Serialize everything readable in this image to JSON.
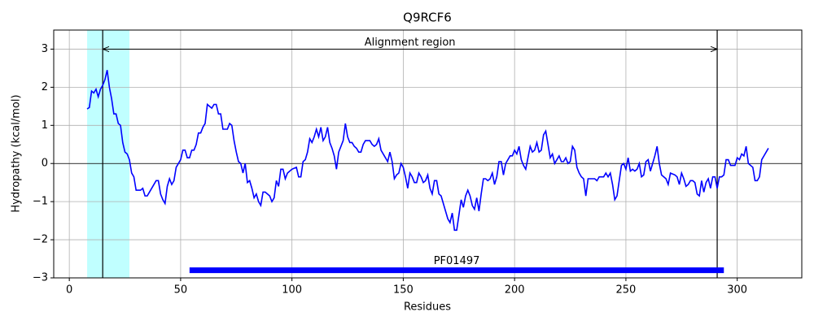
{
  "chart_data": {
    "type": "line",
    "title": "Q9RCF6",
    "xlabel": "Residues",
    "ylabel": "Hydropathy (kcal/mol)",
    "x": [
      8,
      9,
      10,
      11,
      12,
      13,
      14,
      15,
      16,
      17,
      18,
      19,
      20,
      21,
      22,
      23,
      24,
      25,
      26,
      27,
      28,
      29,
      30,
      32,
      33,
      34,
      35,
      36,
      38,
      39,
      40,
      41,
      42,
      43,
      44,
      45,
      46,
      47,
      48,
      50,
      51,
      52,
      53,
      54,
      55,
      56,
      57,
      58,
      59,
      60,
      61,
      62,
      63,
      64,
      65,
      66,
      67,
      68,
      69,
      71,
      72,
      73,
      74,
      75,
      76,
      77,
      78,
      79,
      80,
      81,
      82,
      83,
      84,
      85,
      86,
      87,
      88,
      89,
      90,
      91,
      92,
      93,
      94,
      95,
      96,
      97,
      98,
      100,
      102,
      103,
      104,
      105,
      106,
      107,
      108,
      109,
      110,
      111,
      112,
      113,
      114,
      115,
      116,
      117,
      118,
      119,
      120,
      121,
      122,
      123,
      124,
      125,
      126,
      127,
      128,
      129,
      130,
      131,
      132,
      133,
      135,
      136,
      137,
      138,
      139,
      140,
      142,
      143,
      144,
      145,
      146,
      147,
      148,
      149,
      150,
      151,
      152,
      153,
      154,
      155,
      156,
      157,
      158,
      159,
      160,
      161,
      162,
      163,
      164,
      165,
      166,
      167,
      168,
      169,
      170,
      171,
      172,
      173,
      174,
      175,
      176,
      177,
      178,
      179,
      180,
      181,
      182,
      183,
      184,
      185,
      186,
      187,
      188,
      189,
      190,
      191,
      192,
      193,
      194,
      195,
      196,
      197,
      198,
      199,
      200,
      201,
      202,
      203,
      204,
      205,
      206,
      207,
      208,
      209,
      210,
      211,
      212,
      213,
      214,
      215,
      216,
      217,
      218,
      219,
      220,
      221,
      222,
      223,
      224,
      225,
      226,
      227,
      228,
      229,
      230,
      231,
      232,
      233,
      234,
      236,
      237,
      238,
      240,
      241,
      242,
      243,
      244,
      245,
      246,
      247,
      248,
      249,
      250,
      251,
      252,
      253,
      254,
      255,
      256,
      257,
      258,
      259,
      260,
      261,
      262,
      263,
      264,
      265,
      266,
      267,
      268,
      269,
      270,
      272,
      273,
      274,
      275,
      276,
      277,
      278,
      279,
      280,
      281,
      282,
      283,
      284,
      285,
      286,
      287,
      288,
      289,
      290,
      291,
      292,
      293,
      294,
      295,
      296,
      297,
      299,
      300,
      301,
      302,
      303,
      304,
      305,
      306,
      307,
      308,
      309,
      310,
      311,
      312,
      314
    ],
    "values": [
      1.43,
      1.47,
      1.9,
      1.85,
      1.95,
      1.75,
      1.95,
      2.05,
      2.2,
      2.45,
      2.0,
      1.7,
      1.3,
      1.3,
      1.05,
      1.0,
      0.55,
      0.3,
      0.25,
      0.1,
      -0.25,
      -0.35,
      -0.7,
      -0.7,
      -0.65,
      -0.85,
      -0.85,
      -0.75,
      -0.55,
      -0.45,
      -0.45,
      -0.8,
      -0.95,
      -1.05,
      -0.6,
      -0.4,
      -0.55,
      -0.45,
      -0.1,
      0.1,
      0.35,
      0.35,
      0.15,
      0.15,
      0.35,
      0.35,
      0.5,
      0.8,
      0.8,
      0.95,
      1.05,
      1.55,
      1.5,
      1.45,
      1.55,
      1.55,
      1.3,
      1.3,
      0.9,
      0.9,
      1.05,
      1.0,
      0.6,
      0.3,
      0.05,
      0.0,
      -0.25,
      0.0,
      -0.5,
      -0.45,
      -0.65,
      -0.9,
      -0.8,
      -1.0,
      -1.1,
      -0.75,
      -0.75,
      -0.8,
      -0.85,
      -1.0,
      -0.9,
      -0.45,
      -0.6,
      -0.15,
      -0.15,
      -0.4,
      -0.25,
      -0.15,
      -0.1,
      -0.35,
      -0.35,
      0.05,
      0.1,
      0.3,
      0.65,
      0.55,
      0.7,
      0.9,
      0.7,
      0.95,
      0.6,
      0.7,
      0.95,
      0.55,
      0.4,
      0.2,
      -0.15,
      0.3,
      0.45,
      0.6,
      1.05,
      0.7,
      0.55,
      0.55,
      0.45,
      0.4,
      0.3,
      0.3,
      0.5,
      0.6,
      0.6,
      0.5,
      0.45,
      0.5,
      0.65,
      0.35,
      0.15,
      0.05,
      0.3,
      0.05,
      -0.4,
      -0.3,
      -0.25,
      0.0,
      -0.1,
      -0.35,
      -0.65,
      -0.25,
      -0.35,
      -0.5,
      -0.5,
      -0.25,
      -0.35,
      -0.5,
      -0.45,
      -0.3,
      -0.65,
      -0.8,
      -0.45,
      -0.45,
      -0.8,
      -0.85,
      -1.05,
      -1.25,
      -1.45,
      -1.55,
      -1.3,
      -1.75,
      -1.75,
      -1.35,
      -0.95,
      -1.15,
      -0.85,
      -0.7,
      -0.85,
      -1.1,
      -1.2,
      -0.9,
      -1.25,
      -0.8,
      -0.4,
      -0.4,
      -0.45,
      -0.4,
      -0.25,
      -0.55,
      -0.35,
      0.05,
      0.05,
      -0.3,
      0.0,
      0.1,
      0.2,
      0.2,
      0.35,
      0.25,
      0.45,
      0.1,
      -0.05,
      -0.15,
      0.15,
      0.45,
      0.3,
      0.35,
      0.55,
      0.3,
      0.35,
      0.75,
      0.85,
      0.5,
      0.15,
      0.25,
      0.0,
      0.1,
      0.2,
      0.05,
      0.05,
      0.15,
      0.0,
      0.05,
      0.45,
      0.35,
      -0.1,
      -0.25,
      -0.35,
      -0.4,
      -0.85,
      -0.4,
      -0.4,
      -0.4,
      -0.45,
      -0.35,
      -0.35,
      -0.25,
      -0.35,
      -0.25,
      -0.55,
      -0.95,
      -0.85,
      -0.45,
      -0.05,
      0.0,
      -0.15,
      0.15,
      -0.2,
      -0.15,
      -0.2,
      -0.15,
      0.0,
      -0.35,
      -0.3,
      0.05,
      0.1,
      -0.2,
      0.0,
      0.2,
      0.45,
      0.0,
      -0.3,
      -0.35,
      -0.4,
      -0.55,
      -0.25,
      -0.3,
      -0.35,
      -0.55,
      -0.25,
      -0.4,
      -0.6,
      -0.55,
      -0.45,
      -0.45,
      -0.5,
      -0.8,
      -0.85,
      -0.45,
      -0.75,
      -0.5,
      -0.4,
      -0.65,
      -0.35,
      -0.35,
      -0.65,
      -0.35,
      -0.35,
      -0.3,
      0.1,
      0.1,
      -0.05,
      -0.05,
      0.15,
      0.1,
      0.25,
      0.2,
      0.45,
      0.0,
      -0.05,
      -0.1,
      -0.45,
      -0.45,
      -0.35,
      0.1,
      0.2,
      0.4
    ],
    "color": "#0000ff",
    "xlim": [
      -7,
      329
    ],
    "ylim": [
      -3,
      3.5
    ],
    "xticks": [
      0,
      50,
      100,
      150,
      200,
      250,
      300
    ],
    "yticks": [
      {
        "value": -3,
        "label": "−3"
      },
      {
        "value": -2,
        "label": "−2"
      },
      {
        "value": -1,
        "label": "−1"
      },
      0,
      1,
      2,
      3
    ],
    "grid": true,
    "hline": 0,
    "highlight": [
      8,
      27
    ],
    "highlight_color": "#c0ffff",
    "alignment_region": {
      "label": "Alignment region",
      "start": 15,
      "end": 291,
      "y": 3
    },
    "domain": {
      "label": "PF01497",
      "start": 54,
      "end": 294,
      "y": -2.8,
      "color": "#0000ff"
    }
  }
}
